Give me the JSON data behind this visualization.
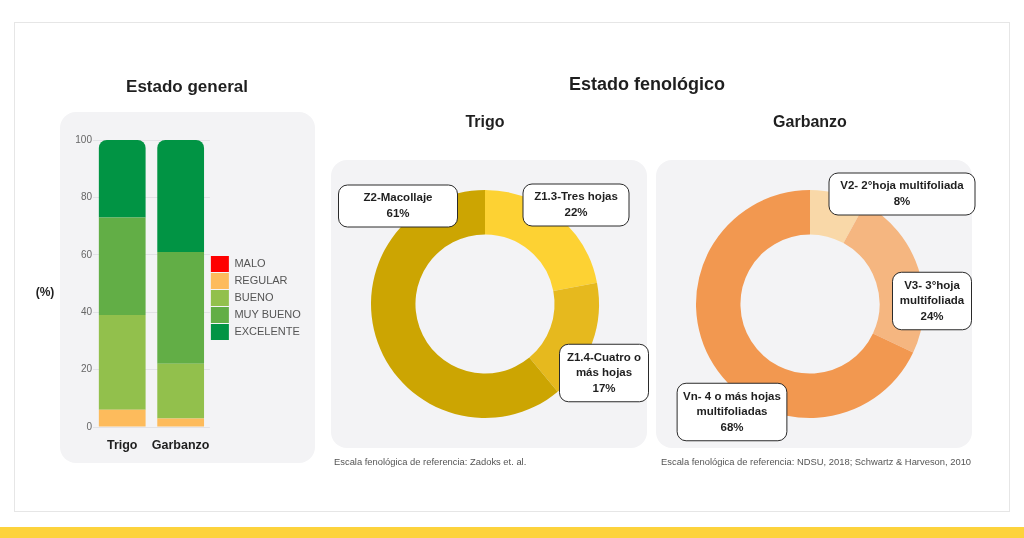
{
  "chart_data": [
    {
      "type": "bar",
      "title": "Estado general",
      "ylabel": "(%)",
      "categories": [
        "Trigo",
        "Garbanzo"
      ],
      "series": [
        {
          "name": "MALO",
          "color": "#fe0000",
          "values": [
            0,
            0
          ]
        },
        {
          "name": "REGULAR",
          "color": "#fdbb5c",
          "values": [
            6,
            3
          ]
        },
        {
          "name": "BUENO",
          "color": "#92c04c",
          "values": [
            33,
            19
          ]
        },
        {
          "name": "MUY BUENO",
          "color": "#62ae46",
          "values": [
            34,
            39
          ]
        },
        {
          "name": "EXCELENTE",
          "color": "#019444",
          "values": [
            27,
            39
          ]
        }
      ],
      "stacked": true,
      "ylim": [
        0,
        100
      ],
      "yticks": [
        0,
        20,
        40,
        60,
        80,
        100
      ],
      "grid": "y",
      "legend": "right"
    },
    {
      "type": "donut",
      "title": "Estado fenológico",
      "subtitle": "Trigo",
      "categories": [
        "Z1.3-Tres hojas",
        "Z1.4-Cuatro o más hojas",
        "Z2-Macollaje"
      ],
      "values": [
        22,
        17,
        61
      ],
      "colors": [
        "#fdd233",
        "#e6b91e",
        "#cca502"
      ],
      "value_labels": [
        "22%",
        "17%",
        "61%"
      ],
      "annotations": [
        "Escala fenológica de referencia: Zadoks et. al."
      ]
    },
    {
      "type": "donut",
      "subtitle": "Garbanzo",
      "categories": [
        "V2- 2°hoja multifoliada",
        "V3- 3°hoja multifoliada",
        "Vn- 4 o más hojas multifoliadas"
      ],
      "values": [
        8,
        24,
        68
      ],
      "colors": [
        "#f9d8a8",
        "#f5b680",
        "#f29850"
      ],
      "value_labels": [
        "8%",
        "24%",
        "68%"
      ],
      "annotations": [
        "Escala fenológica de referencia: NDSU, 2018; Schwartz & Harveson, 2010"
      ]
    }
  ]
}
